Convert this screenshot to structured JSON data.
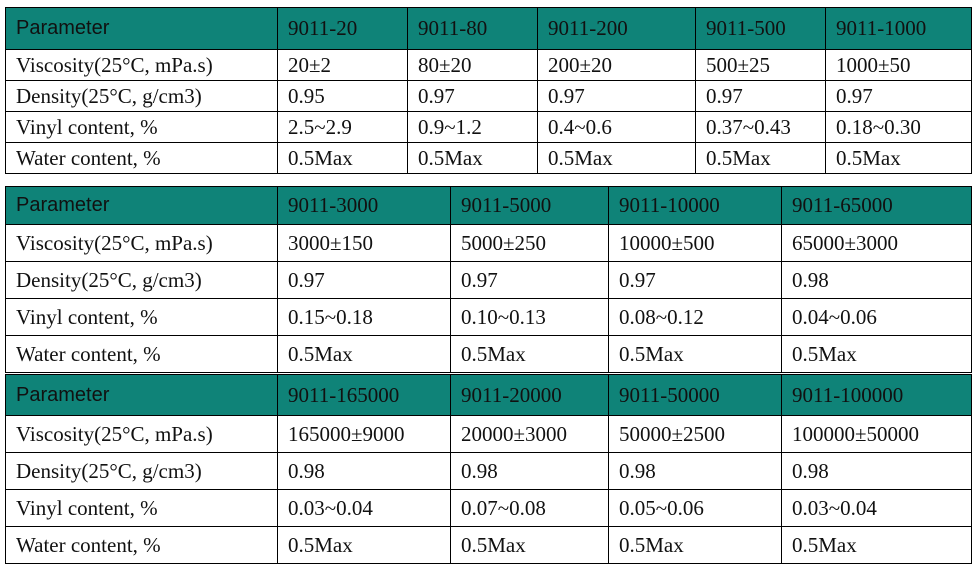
{
  "table1": {
    "header": [
      "Parameter",
      "9011-20",
      "9011-80",
      "9011-200",
      "9011-500",
      "9011-1000"
    ],
    "rows": [
      [
        "Viscosity(25°C, mPa.s)",
        "20±2",
        "80±20",
        "200±20",
        "500±25",
        "1000±50"
      ],
      [
        "Density(25°C, g/cm3)",
        "0.95",
        "0.97",
        "0.97",
        "0.97",
        "0.97"
      ],
      [
        "Vinyl content, %",
        "2.5~2.9",
        "0.9~1.2",
        "0.4~0.6",
        "0.37~0.43",
        "0.18~0.30"
      ],
      [
        "Water content, %",
        "0.5Max",
        "0.5Max",
        "0.5Max",
        "0.5Max",
        "0.5Max"
      ]
    ]
  },
  "table2": {
    "header": [
      "Parameter",
      "9011-3000",
      "9011-5000",
      "9011-10000",
      "9011-65000"
    ],
    "rows": [
      [
        "Viscosity(25°C, mPa.s)",
        "3000±150",
        "5000±250",
        "10000±500",
        "65000±3000"
      ],
      [
        "Density(25°C, g/cm3)",
        "0.97",
        "0.97",
        "0.97",
        "0.98"
      ],
      [
        "Vinyl content, %",
        "0.15~0.18",
        "0.10~0.13",
        "0.08~0.12",
        "0.04~0.06"
      ],
      [
        "Water content, %",
        "0.5Max",
        "0.5Max",
        "0.5Max",
        "0.5Max"
      ]
    ]
  },
  "table3": {
    "header": [
      "Parameter",
      "9011-165000",
      "9011-20000",
      "9011-50000",
      "9011-100000"
    ],
    "rows": [
      [
        "Viscosity(25°C, mPa.s)",
        "165000±9000",
        "20000±3000",
        "50000±2500",
        "100000±50000"
      ],
      [
        "Density(25°C, g/cm3)",
        "0.98",
        "0.98",
        "0.98",
        "0.98"
      ],
      [
        "Vinyl content, %",
        "0.03~0.04",
        "0.07~0.08",
        "0.05~0.06",
        "0.03~0.04"
      ],
      [
        "Water content, %",
        "0.5Max",
        "0.5Max",
        "0.5Max",
        "0.5Max"
      ]
    ]
  },
  "colors": {
    "header_bg": "#0f8378",
    "border": "#000000"
  }
}
